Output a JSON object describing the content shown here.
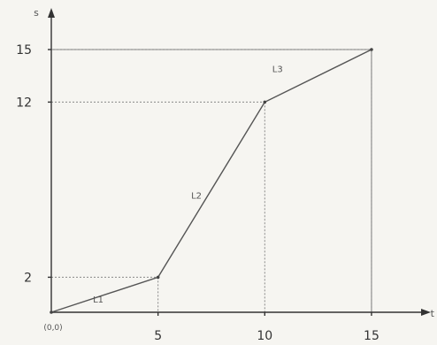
{
  "chart_data": {
    "type": "line",
    "xlabel": "t",
    "ylabel": "s",
    "origin_label": "(0,0)",
    "xlim": [
      0,
      15
    ],
    "ylim": [
      0,
      15
    ],
    "x_ticks": [
      {
        "value": 5,
        "label": "5"
      },
      {
        "value": 10,
        "label": "10"
      },
      {
        "value": 15,
        "label": "15"
      }
    ],
    "y_ticks": [
      {
        "value": 2,
        "label": "2"
      },
      {
        "value": 12,
        "label": "12"
      },
      {
        "value": 15,
        "label": "15"
      }
    ],
    "series": [
      {
        "x": [
          0,
          5,
          10,
          15
        ],
        "y": [
          0,
          2,
          12,
          15
        ]
      }
    ],
    "segment_labels": [
      {
        "text": "L1",
        "x": 2.2,
        "y": 0.55
      },
      {
        "text": "L2",
        "x": 6.8,
        "y": 6.5
      },
      {
        "text": "L3",
        "x": 10.6,
        "y": 13.7
      }
    ],
    "guides": [
      {
        "x": 5,
        "y": 2
      },
      {
        "x": 10,
        "y": 12
      },
      {
        "x": 15,
        "y": 15
      }
    ],
    "grid": false,
    "legend": "none"
  }
}
